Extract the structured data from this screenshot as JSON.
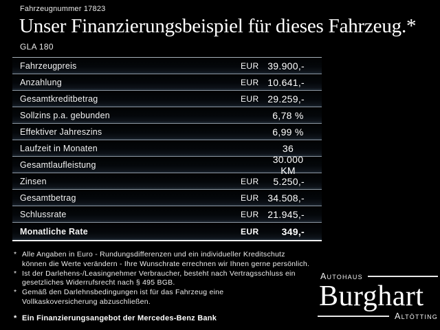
{
  "header": {
    "vehicle_number": "Fahrzeugnummer 17823",
    "title": "Unser Finanzierungsbeispiel für dieses Fahrzeug.*",
    "model": "GLA 180"
  },
  "financing_table": {
    "rows": [
      {
        "label": "Fahrzeugpreis",
        "currency": "EUR",
        "value": "39.900,-"
      },
      {
        "label": "Anzahlung",
        "currency": "EUR",
        "value": "10.641,-"
      },
      {
        "label": "Gesamtkreditbetrag",
        "currency": "EUR",
        "value": "29.259,-"
      },
      {
        "label": "Sollzins p.a. gebunden",
        "currency": "",
        "value": "6,78 %"
      },
      {
        "label": "Effektiver Jahreszins",
        "currency": "",
        "value": "6,99 %"
      },
      {
        "label": "Laufzeit in Monaten",
        "currency": "",
        "value": "36"
      },
      {
        "label": "Gesamtlaufleistung",
        "currency": "",
        "value": "30.000 KM"
      },
      {
        "label": "Zinsen",
        "currency": "EUR",
        "value": "5.250,-"
      },
      {
        "label": "Gesamtbetrag",
        "currency": "EUR",
        "value": "34.508,-"
      },
      {
        "label": "Schlussrate",
        "currency": "EUR",
        "value": "21.945,-"
      },
      {
        "label": "Monatliche Rate",
        "currency": "EUR",
        "value": "349,-",
        "emphasis": true
      }
    ]
  },
  "footnotes": {
    "marker": "*",
    "items": [
      {
        "lines": [
          "Alle Angaben in Euro - Rundungsdifferenzen und ein individueller Kreditschutz",
          "können die Werte verändern - Ihre Wunschrate errechnen wir Ihnen gerne persönlich."
        ]
      },
      {
        "lines": [
          "Ist der Darlehens-/Leasingnehmer Verbraucher, besteht nach Vertragsschluss ein",
          "gesetzliches Widerrufsrecht nach § 495 BGB."
        ]
      },
      {
        "lines": [
          "Gemäß den Darlehnsbedingungen ist für das Fahrzeug eine",
          "Vollkaskoversicherung abzuschließen."
        ]
      }
    ],
    "bank_note": "Ein Finanzierungsangebot der Mercedes-Benz Bank"
  },
  "dealer_logo": {
    "prefix": "Autohaus",
    "name": "Burghart",
    "city": "Altötting"
  },
  "colors": {
    "background": "#000000",
    "text": "#ffffff",
    "separator_line": "#8f99a3",
    "highlight_line": "#f2f2f2"
  }
}
